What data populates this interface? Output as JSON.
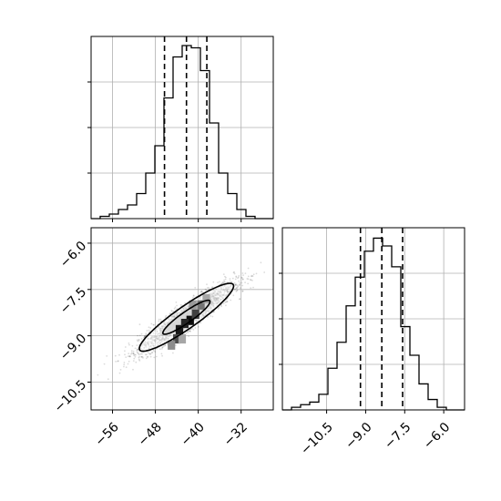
{
  "chart_data": {
    "type": "corner",
    "grid": true,
    "parameters": [
      {
        "xlim": [
          -60,
          -26
        ],
        "tick_values": [
          -56,
          -48,
          -40,
          -32
        ],
        "tick_labels": [
          "−56",
          "−48",
          "−40",
          "−32"
        ]
      },
      {
        "xlim": [
          -12.2,
          -5.2
        ],
        "tick_values": [
          -10.5,
          -9.0,
          -7.5,
          -6.0
        ],
        "tick_labels": [
          "−10.5",
          "−9.0",
          "−7.5",
          "−6.0"
        ]
      }
    ],
    "marginals": [
      {
        "param": 0,
        "bin_edges": [
          -60,
          -58.3,
          -56.6,
          -54.9,
          -53.2,
          -51.5,
          -49.8,
          -48.1,
          -46.4,
          -44.7,
          -43.0,
          -41.3,
          -39.6,
          -37.9,
          -36.2,
          -34.5,
          -32.8,
          -31.1,
          -29.4,
          -27.7,
          -26
        ],
        "counts": [
          0,
          1,
          2,
          4,
          6,
          11,
          20,
          32,
          53,
          71,
          76,
          75,
          65,
          42,
          20,
          11,
          4,
          1,
          0,
          0
        ],
        "ylim": [
          0,
          80
        ],
        "quantile_lines": [
          -46.3,
          -42.2,
          -38.4
        ]
      },
      {
        "param": 1,
        "bin_edges": [
          -12.2,
          -11.85,
          -11.5,
          -11.15,
          -10.8,
          -10.45,
          -10.1,
          -9.75,
          -9.4,
          -9.05,
          -8.7,
          -8.35,
          -8.0,
          -7.65,
          -7.3,
          -6.95,
          -6.6,
          -6.25,
          -5.9,
          -5.55,
          -5.2
        ],
        "counts": [
          0,
          1,
          2,
          3,
          6,
          16,
          26,
          40,
          51,
          61,
          66,
          63,
          55,
          32,
          21,
          10,
          4,
          1,
          0,
          0
        ],
        "ylim": [
          0,
          70
        ],
        "quantile_lines": [
          -9.2,
          -8.38,
          -7.58
        ]
      }
    ],
    "joint": {
      "x_param": 0,
      "y_param": 1,
      "xlim": [
        -60,
        -26
      ],
      "ylim": [
        -11.4,
        -5.5
      ],
      "correlation": 0.92,
      "center": [
        -42.2,
        -8.4
      ],
      "std": [
        4.4,
        0.55
      ],
      "sample_points": 2500,
      "density_cells": [
        {
          "x": -43.5,
          "y": -8.8,
          "level": 0.9
        },
        {
          "x": -41.5,
          "y": -8.5,
          "level": 0.95
        },
        {
          "x": -42.5,
          "y": -8.6,
          "level": 0.85
        },
        {
          "x": -40.5,
          "y": -8.3,
          "level": 0.75
        },
        {
          "x": -44.0,
          "y": -9.1,
          "level": 0.7
        },
        {
          "x": -39.5,
          "y": -8.0,
          "level": 0.55
        },
        {
          "x": -45.0,
          "y": -9.3,
          "level": 0.45
        },
        {
          "x": -38.5,
          "y": -7.8,
          "level": 0.35
        },
        {
          "x": -41.0,
          "y": -8.0,
          "level": 0.4
        },
        {
          "x": -43.0,
          "y": -9.1,
          "level": 0.35
        }
      ],
      "contour_sigmas": [
        1.0,
        2.0
      ]
    }
  }
}
